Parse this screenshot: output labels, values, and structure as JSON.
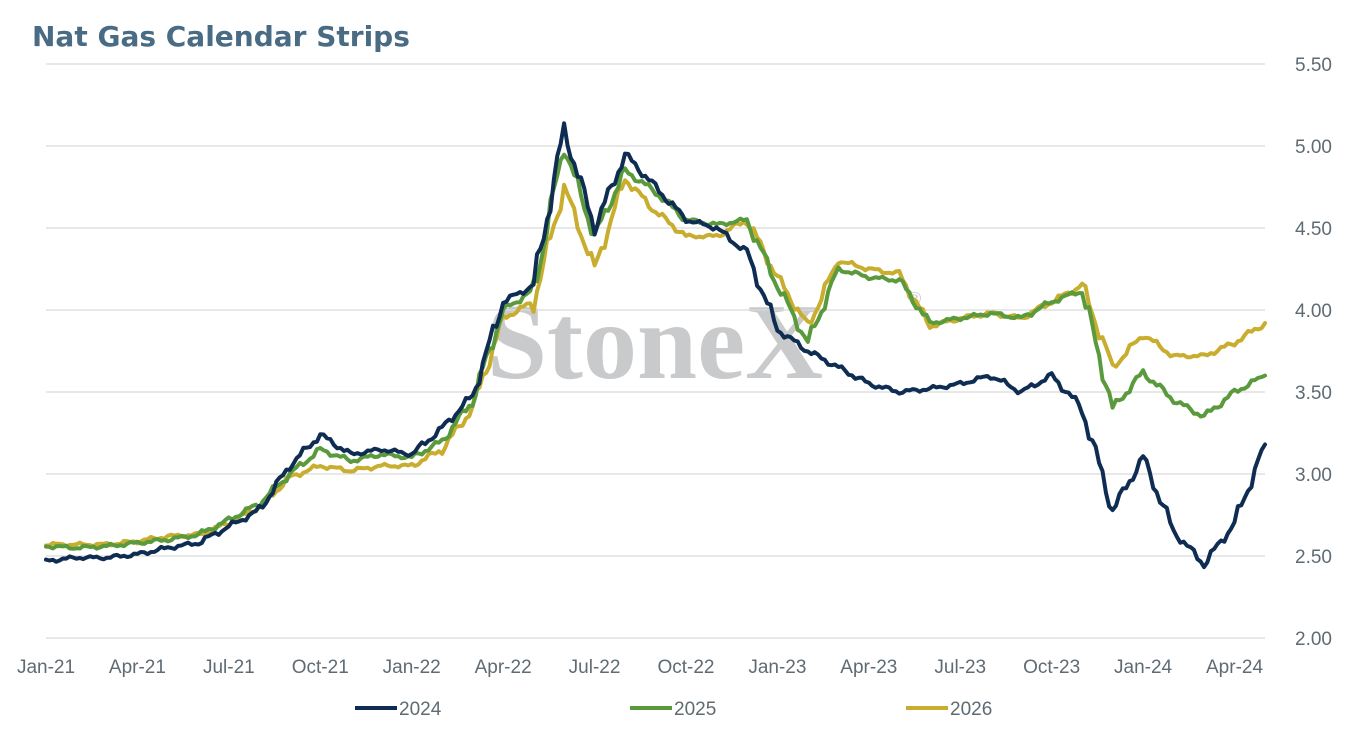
{
  "colors": {
    "title": "#4a6b84",
    "grid": "#d9d9d9",
    "watermark": "#c9cacc",
    "series_2024": "#0f2d52",
    "series_2025": "#5a9a3c",
    "series_2026": "#c8ad2e"
  },
  "watermark": {
    "text": "StoneX",
    "mark": "®"
  },
  "chart_data": {
    "type": "line",
    "title": "Nat Gas Calendar Strips",
    "xlabel": "",
    "ylabel": "",
    "x_ticks": [
      "Jan-21",
      "Apr-21",
      "Jul-21",
      "Oct-21",
      "Jan-22",
      "Apr-22",
      "Jul-22",
      "Oct-22",
      "Jan-23",
      "Apr-23",
      "Jul-23",
      "Oct-23",
      "Jan-24",
      "Apr-24"
    ],
    "y_ticks": [
      "2.00",
      "2.50",
      "3.00",
      "3.50",
      "4.00",
      "4.50",
      "5.00",
      "5.50"
    ],
    "ylim": [
      2.0,
      5.5
    ],
    "y_axis_position": "right",
    "grid": true,
    "legend_position": "bottom",
    "x_start": "2021-01",
    "x_end": "2024-05",
    "series": [
      {
        "name": "2024",
        "color": "#0f2d52",
        "points": [
          [
            "2021-01",
            2.47
          ],
          [
            "2021-02",
            2.49
          ],
          [
            "2021-03",
            2.49
          ],
          [
            "2021-04",
            2.51
          ],
          [
            "2021-05",
            2.55
          ],
          [
            "2021-06",
            2.58
          ],
          [
            "2021-07",
            2.68
          ],
          [
            "2021-08",
            2.78
          ],
          [
            "2021-09",
            3.05
          ],
          [
            "2021-10",
            3.24
          ],
          [
            "2021-11",
            3.12
          ],
          [
            "2021-12",
            3.15
          ],
          [
            "2022-01",
            3.12
          ],
          [
            "2022-02",
            3.28
          ],
          [
            "2022-03",
            3.48
          ],
          [
            "2022-04",
            4.05
          ],
          [
            "2022-05",
            4.15
          ],
          [
            "2022-06",
            5.1
          ],
          [
            "2022-07",
            4.5
          ],
          [
            "2022-08",
            4.95
          ],
          [
            "2022-09",
            4.75
          ],
          [
            "2022-10",
            4.55
          ],
          [
            "2022-11",
            4.5
          ],
          [
            "2022-12",
            4.35
          ],
          [
            "2023-01",
            3.88
          ],
          [
            "2023-02",
            3.75
          ],
          [
            "2023-03",
            3.65
          ],
          [
            "2023-04",
            3.55
          ],
          [
            "2023-05",
            3.5
          ],
          [
            "2023-06",
            3.52
          ],
          [
            "2023-07",
            3.55
          ],
          [
            "2023-08",
            3.6
          ],
          [
            "2023-09",
            3.5
          ],
          [
            "2023-10",
            3.6
          ],
          [
            "2023-11",
            3.4
          ],
          [
            "2023-12",
            2.78
          ],
          [
            "2024-01",
            3.1
          ],
          [
            "2024-02",
            2.65
          ],
          [
            "2024-03",
            2.45
          ],
          [
            "2024-04",
            2.7
          ],
          [
            "2024-05",
            3.18
          ]
        ]
      },
      {
        "name": "2025",
        "color": "#5a9a3c",
        "points": [
          [
            "2021-01",
            2.56
          ],
          [
            "2021-02",
            2.55
          ],
          [
            "2021-03",
            2.56
          ],
          [
            "2021-04",
            2.58
          ],
          [
            "2021-05",
            2.6
          ],
          [
            "2021-06",
            2.63
          ],
          [
            "2021-07",
            2.72
          ],
          [
            "2021-08",
            2.82
          ],
          [
            "2021-09",
            3.0
          ],
          [
            "2021-10",
            3.15
          ],
          [
            "2021-11",
            3.08
          ],
          [
            "2021-12",
            3.12
          ],
          [
            "2022-01",
            3.1
          ],
          [
            "2022-02",
            3.2
          ],
          [
            "2022-03",
            3.45
          ],
          [
            "2022-04",
            4.0
          ],
          [
            "2022-05",
            4.12
          ],
          [
            "2022-06",
            5.0
          ],
          [
            "2022-07",
            4.45
          ],
          [
            "2022-08",
            4.85
          ],
          [
            "2022-09",
            4.72
          ],
          [
            "2022-10",
            4.55
          ],
          [
            "2022-11",
            4.52
          ],
          [
            "2022-12",
            4.55
          ],
          [
            "2023-01",
            4.15
          ],
          [
            "2023-02",
            3.8
          ],
          [
            "2023-03",
            4.25
          ],
          [
            "2023-04",
            4.2
          ],
          [
            "2023-05",
            4.18
          ],
          [
            "2023-06",
            3.92
          ],
          [
            "2023-07",
            3.95
          ],
          [
            "2023-08",
            3.98
          ],
          [
            "2023-09",
            3.95
          ],
          [
            "2023-10",
            4.05
          ],
          [
            "2023-11",
            4.12
          ],
          [
            "2023-12",
            3.4
          ],
          [
            "2024-01",
            3.62
          ],
          [
            "2024-02",
            3.45
          ],
          [
            "2024-03",
            3.35
          ],
          [
            "2024-04",
            3.5
          ],
          [
            "2024-05",
            3.6
          ]
        ]
      },
      {
        "name": "2026",
        "color": "#c8ad2e",
        "points": [
          [
            "2021-01",
            2.57
          ],
          [
            "2021-02",
            2.57
          ],
          [
            "2021-03",
            2.57
          ],
          [
            "2021-04",
            2.59
          ],
          [
            "2021-05",
            2.62
          ],
          [
            "2021-06",
            2.63
          ],
          [
            "2021-07",
            2.7
          ],
          [
            "2021-08",
            2.8
          ],
          [
            "2021-09",
            2.98
          ],
          [
            "2021-10",
            3.05
          ],
          [
            "2021-11",
            3.02
          ],
          [
            "2021-12",
            3.05
          ],
          [
            "2022-01",
            3.05
          ],
          [
            "2022-02",
            3.15
          ],
          [
            "2022-03",
            3.4
          ],
          [
            "2022-04",
            3.95
          ],
          [
            "2022-05",
            4.05
          ],
          [
            "2022-06",
            4.75
          ],
          [
            "2022-07",
            4.25
          ],
          [
            "2022-08",
            4.8
          ],
          [
            "2022-09",
            4.6
          ],
          [
            "2022-10",
            4.45
          ],
          [
            "2022-11",
            4.45
          ],
          [
            "2022-12",
            4.55
          ],
          [
            "2023-01",
            4.2
          ],
          [
            "2023-02",
            3.9
          ],
          [
            "2023-03",
            4.3
          ],
          [
            "2023-04",
            4.25
          ],
          [
            "2023-05",
            4.22
          ],
          [
            "2023-06",
            3.9
          ],
          [
            "2023-07",
            3.95
          ],
          [
            "2023-08",
            3.98
          ],
          [
            "2023-09",
            3.95
          ],
          [
            "2023-10",
            4.05
          ],
          [
            "2023-11",
            4.15
          ],
          [
            "2023-12",
            3.65
          ],
          [
            "2024-01",
            3.85
          ],
          [
            "2024-02",
            3.72
          ],
          [
            "2024-03",
            3.72
          ],
          [
            "2024-04",
            3.8
          ],
          [
            "2024-05",
            3.92
          ]
        ]
      }
    ]
  }
}
